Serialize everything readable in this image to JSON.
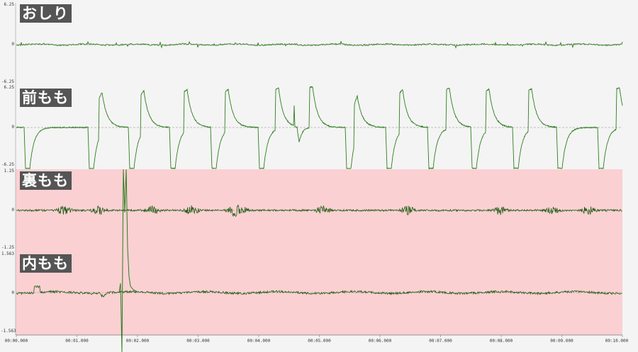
{
  "lanes": [
    {
      "label": "おしり",
      "ymax": "6.25",
      "yzero": "0",
      "ymin": "-6.25",
      "highlighted": false
    },
    {
      "label": "前もも",
      "ymax": "6.25",
      "yzero": "0",
      "ymin": "-6.25",
      "highlighted": false
    },
    {
      "label": "裏もも",
      "ymax": "1.25",
      "yzero": "0",
      "ymin": "-1.25",
      "highlighted": true
    },
    {
      "label": "内もも",
      "ymax": "1.563",
      "yzero": "0",
      "ymin": "-1.563",
      "highlighted": true
    }
  ],
  "xaxis": {
    "ticks": [
      "00:00.000",
      "00:01.000",
      "00:02.000",
      "00:03.000",
      "00:04.000",
      "00:05.000",
      "00:06.000",
      "00:07.000",
      "00:08.000",
      "00:09.000",
      "00:10.000"
    ]
  },
  "colors": {
    "signal": "#2e7d1e",
    "signal_dark": "#1e5c12",
    "baseline": "#888888",
    "highlight": "#fbd0d3",
    "background": "#f4f4f4"
  }
}
